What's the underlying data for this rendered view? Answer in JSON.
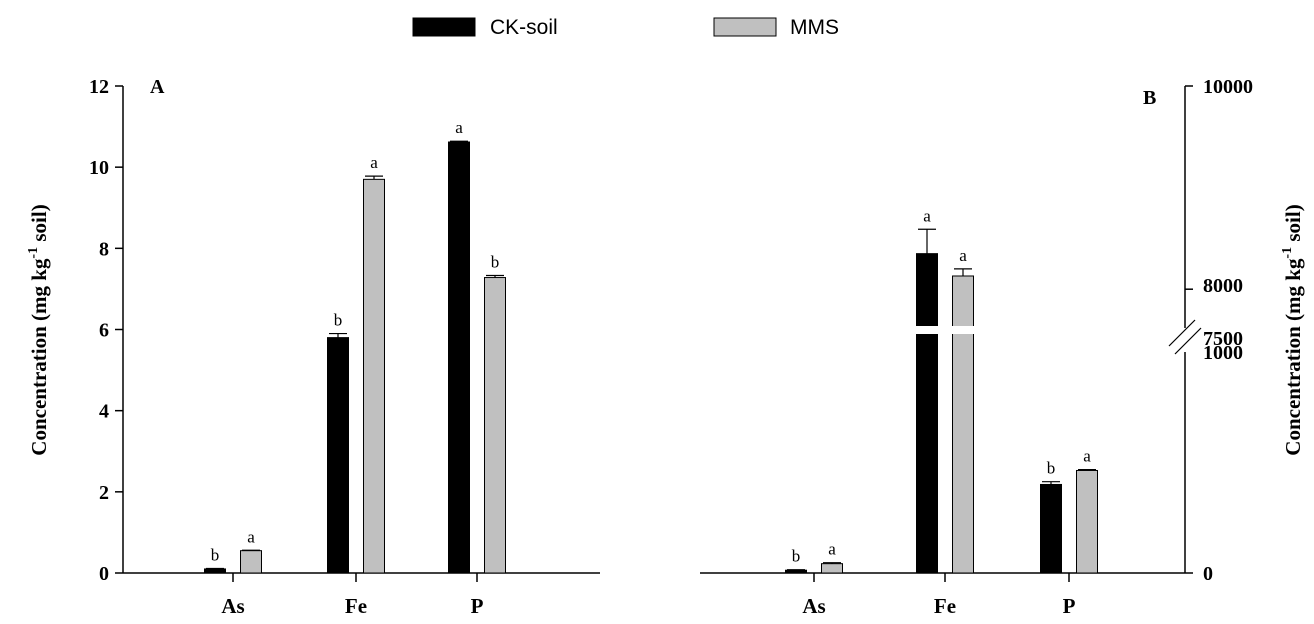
{
  "legend": {
    "entries": [
      {
        "label": "CK-soil",
        "color": "#000000"
      },
      {
        "label": "MMS",
        "color": "#c0c0c0"
      }
    ]
  },
  "chart_data": [
    {
      "panel": "A",
      "type": "bar",
      "categories": [
        "As",
        "Fe",
        "P"
      ],
      "series": [
        {
          "name": "CK-soil",
          "color": "#000000",
          "values": [
            0.1,
            5.8,
            10.62
          ],
          "errors": [
            0.01,
            0.1,
            0.02
          ],
          "letters": [
            "b",
            "b",
            "a"
          ]
        },
        {
          "name": "MMS",
          "color": "#c0c0c0",
          "values": [
            0.55,
            9.7,
            7.28
          ],
          "errors": [
            0.01,
            0.08,
            0.05
          ],
          "letters": [
            "a",
            "a",
            "b"
          ]
        }
      ],
      "ylim": [
        0,
        12
      ],
      "yticks": [
        "0",
        "2",
        "4",
        "6",
        "8",
        "10",
        "12"
      ],
      "ylabel_main": "Concentration (mg kg",
      "ylabel_sup": "-1",
      "ylabel_end": " soil)",
      "axis_side": "left",
      "grid": false
    },
    {
      "panel": "B",
      "type": "bar",
      "categories": [
        "As",
        "Fe",
        "P"
      ],
      "series": [
        {
          "name": "CK-soil",
          "color": "#000000",
          "values": [
            12,
            8350,
            380
          ],
          "errors": [
            2,
            240,
            12
          ],
          "letters": [
            "b",
            "a",
            "b"
          ]
        },
        {
          "name": "MMS",
          "color": "#c0c0c0",
          "values": [
            40,
            8130,
            440
          ],
          "errors": [
            4,
            70,
            4
          ],
          "letters": [
            "a",
            "a",
            "a"
          ]
        }
      ],
      "ylim": [
        0,
        10000
      ],
      "axis_break": [
        1000,
        7500
      ],
      "yticks": [
        "0",
        "1000",
        "7500",
        "8000",
        "10000"
      ],
      "ylabel_main": "Concentration (mg kg",
      "ylabel_sup": "-1",
      "ylabel_end": " soil)",
      "axis_side": "right",
      "grid": false
    }
  ]
}
